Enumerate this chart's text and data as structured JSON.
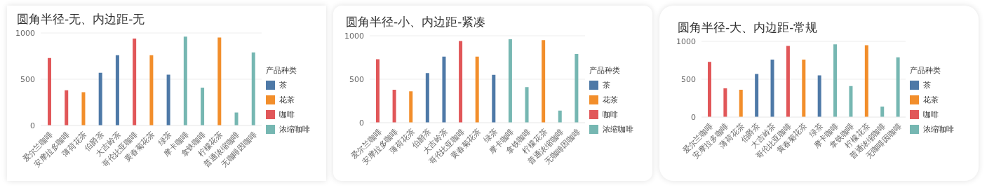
{
  "chart_data": [
    {
      "type": "bar",
      "title": "圆角半径-无、内边距-无",
      "categories": [
        "爱尔兰咖啡",
        "安摩拉多咖啡",
        "薄荷花茶",
        "伯爵茶",
        "大吉岭茶",
        "哥伦比亚咖啡",
        "黄春菊花茶",
        "绿茶",
        "摩卡咖啡",
        "拿铁咖啡",
        "柠檬花茶",
        "普通浓缩咖啡",
        "无咖啡因咖啡"
      ],
      "stacked": true,
      "legend_title": "产品种类",
      "legend": "right",
      "grid": "y",
      "ylim": [
        0,
        1000
      ],
      "yticks": [
        0,
        500,
        1000
      ],
      "series": [
        {
          "name": "茶",
          "color": "#4e79a7",
          "values": [
            null,
            null,
            null,
            570,
            760,
            null,
            null,
            550,
            null,
            null,
            null,
            null,
            null
          ]
        },
        {
          "name": "花茶",
          "color": "#f28e2b",
          "values": [
            null,
            null,
            360,
            null,
            null,
            null,
            760,
            null,
            null,
            null,
            950,
            null,
            null
          ]
        },
        {
          "name": "咖啡",
          "color": "#e15759",
          "values": [
            730,
            380,
            null,
            null,
            null,
            940,
            null,
            null,
            null,
            null,
            null,
            null,
            null
          ]
        },
        {
          "name": "浓缩咖啡",
          "color": "#76b7b2",
          "values": [
            null,
            null,
            null,
            null,
            null,
            null,
            null,
            null,
            960,
            410,
            null,
            140,
            790
          ]
        }
      ]
    },
    {
      "type": "bar",
      "title": "圆角半径-小、内边距-紧凑",
      "categories": [
        "爱尔兰咖啡",
        "安摩拉多咖啡",
        "薄荷花茶",
        "伯爵茶",
        "大吉岭茶",
        "哥伦比亚咖啡",
        "黄春菊花茶",
        "绿茶",
        "摩卡咖啡",
        "拿铁咖啡",
        "柠檬花茶",
        "普通浓缩咖啡",
        "无咖啡因咖啡"
      ],
      "stacked": true,
      "legend_title": "产品种类",
      "legend": "right",
      "grid": "y",
      "ylim": [
        0,
        1000
      ],
      "yticks": [
        0,
        500,
        1000
      ],
      "series": [
        {
          "name": "茶",
          "color": "#4e79a7",
          "values": [
            null,
            null,
            null,
            570,
            760,
            null,
            null,
            550,
            null,
            null,
            null,
            null,
            null
          ]
        },
        {
          "name": "花茶",
          "color": "#f28e2b",
          "values": [
            null,
            null,
            360,
            null,
            null,
            null,
            760,
            null,
            null,
            null,
            950,
            null,
            null
          ]
        },
        {
          "name": "咖啡",
          "color": "#e15759",
          "values": [
            730,
            380,
            null,
            null,
            null,
            940,
            null,
            null,
            null,
            null,
            null,
            null,
            null
          ]
        },
        {
          "name": "浓缩咖啡",
          "color": "#76b7b2",
          "values": [
            null,
            null,
            null,
            null,
            null,
            null,
            null,
            null,
            960,
            410,
            null,
            140,
            790
          ]
        }
      ]
    },
    {
      "type": "bar",
      "title": "圆角半径-大、内边距-常规",
      "categories": [
        "爱尔兰咖啡",
        "安摩拉多咖啡",
        "薄荷花茶",
        "伯爵茶",
        "大吉岭茶",
        "哥伦比亚咖啡",
        "黄春菊花茶",
        "绿茶",
        "摩卡咖啡",
        "拿铁咖啡",
        "柠檬花茶",
        "普通浓缩咖啡",
        "无咖啡因咖啡"
      ],
      "stacked": true,
      "legend_title": "产品种类",
      "legend": "right",
      "grid": "y",
      "ylim": [
        0,
        1000
      ],
      "yticks": [
        0,
        500,
        1000
      ],
      "series": [
        {
          "name": "茶",
          "color": "#4e79a7",
          "values": [
            null,
            null,
            null,
            570,
            760,
            null,
            null,
            550,
            null,
            null,
            null,
            null,
            null
          ]
        },
        {
          "name": "花茶",
          "color": "#f28e2b",
          "values": [
            null,
            null,
            360,
            null,
            null,
            null,
            760,
            null,
            null,
            null,
            950,
            null,
            null
          ]
        },
        {
          "name": "咖啡",
          "color": "#e15759",
          "values": [
            730,
            380,
            null,
            null,
            null,
            940,
            null,
            null,
            null,
            null,
            null,
            null,
            null
          ]
        },
        {
          "name": "浓缩咖啡",
          "color": "#76b7b2",
          "values": [
            null,
            null,
            null,
            null,
            null,
            null,
            null,
            null,
            960,
            410,
            null,
            140,
            790
          ]
        }
      ]
    }
  ]
}
